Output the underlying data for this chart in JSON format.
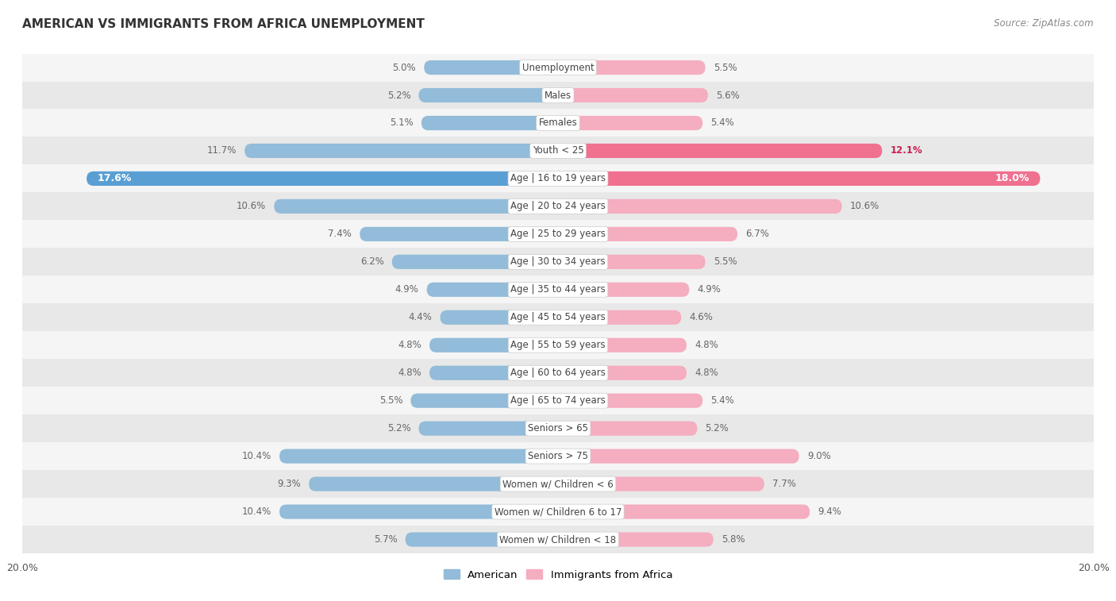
{
  "title": "AMERICAN VS IMMIGRANTS FROM AFRICA UNEMPLOYMENT",
  "source": "Source: ZipAtlas.com",
  "categories": [
    "Unemployment",
    "Males",
    "Females",
    "Youth < 25",
    "Age | 16 to 19 years",
    "Age | 20 to 24 years",
    "Age | 25 to 29 years",
    "Age | 30 to 34 years",
    "Age | 35 to 44 years",
    "Age | 45 to 54 years",
    "Age | 55 to 59 years",
    "Age | 60 to 64 years",
    "Age | 65 to 74 years",
    "Seniors > 65",
    "Seniors > 75",
    "Women w/ Children < 6",
    "Women w/ Children 6 to 17",
    "Women w/ Children < 18"
  ],
  "american": [
    5.0,
    5.2,
    5.1,
    11.7,
    17.6,
    10.6,
    7.4,
    6.2,
    4.9,
    4.4,
    4.8,
    4.8,
    5.5,
    5.2,
    10.4,
    9.3,
    10.4,
    5.7
  ],
  "africa": [
    5.5,
    5.6,
    5.4,
    12.1,
    18.0,
    10.6,
    6.7,
    5.5,
    4.9,
    4.6,
    4.8,
    4.8,
    5.4,
    5.2,
    9.0,
    7.7,
    9.4,
    5.8
  ],
  "american_color_normal": "#92bcd9",
  "american_color_highlight": "#5a9fd4",
  "africa_color_normal": "#f5adc0",
  "africa_color_highlight": "#f07090",
  "africa_color_youth": "#f07090",
  "max_val": 20.0,
  "row_color_light": "#f5f5f5",
  "row_color_dark": "#e8e8e8",
  "label_bg": "#ffffff",
  "value_color_normal": "#666666",
  "value_color_highlight_africa": "#cc2255",
  "highlight_rows": [
    "Age | 16 to 19 years"
  ],
  "semi_highlight_rows": [
    "Youth < 25"
  ]
}
